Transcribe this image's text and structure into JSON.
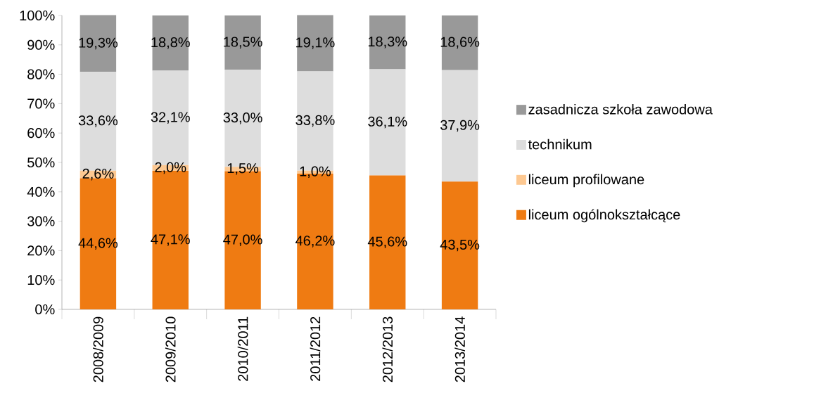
{
  "chart_data": {
    "type": "bar",
    "stacked": true,
    "categories": [
      "2008/2009",
      "2009/2010",
      "2010/2011",
      "2011/2012",
      "2012/2013",
      "2013/2014"
    ],
    "series": [
      {
        "name": "liceum ogólnokształcące",
        "color": "#ef7b12",
        "values": [
          44.6,
          47.1,
          47.0,
          46.2,
          45.6,
          43.5
        ],
        "value_labels": [
          "44,6%",
          "47,1%",
          "47,0%",
          "46,2%",
          "45,6%",
          "43,5%"
        ]
      },
      {
        "name": "liceum profilowane",
        "color": "#fdc891",
        "values": [
          2.6,
          2.0,
          1.5,
          1.0,
          0,
          0
        ],
        "value_labels": [
          "2,6%",
          "2,0%",
          "1,5%",
          "1,0%",
          null,
          null
        ]
      },
      {
        "name": "technikum",
        "color": "#dddddd",
        "values": [
          33.6,
          32.1,
          33.0,
          33.8,
          36.1,
          37.9
        ],
        "value_labels": [
          "33,6%",
          "32,1%",
          "33,0%",
          "33,8%",
          "36,1%",
          "37,9%"
        ]
      },
      {
        "name": "zasadnicza szkoła zawodowa",
        "color": "#999999",
        "values": [
          19.3,
          18.8,
          18.5,
          19.1,
          18.3,
          18.6
        ],
        "value_labels": [
          "19,3%",
          "18,8%",
          "18,5%",
          "19,1%",
          "18,3%",
          "18,6%"
        ]
      }
    ],
    "ylim": [
      0,
      100
    ],
    "yticks": [
      {
        "value": 0,
        "label": "0%"
      },
      {
        "value": 10,
        "label": "10%"
      },
      {
        "value": 20,
        "label": "20%"
      },
      {
        "value": 30,
        "label": "30%"
      },
      {
        "value": 40,
        "label": "40%"
      },
      {
        "value": 50,
        "label": "50%"
      },
      {
        "value": 60,
        "label": "60%"
      },
      {
        "value": 70,
        "label": "70%"
      },
      {
        "value": 80,
        "label": "80%"
      },
      {
        "value": 90,
        "label": "90%"
      },
      {
        "value": 100,
        "label": "100%"
      }
    ],
    "legend": "right"
  }
}
